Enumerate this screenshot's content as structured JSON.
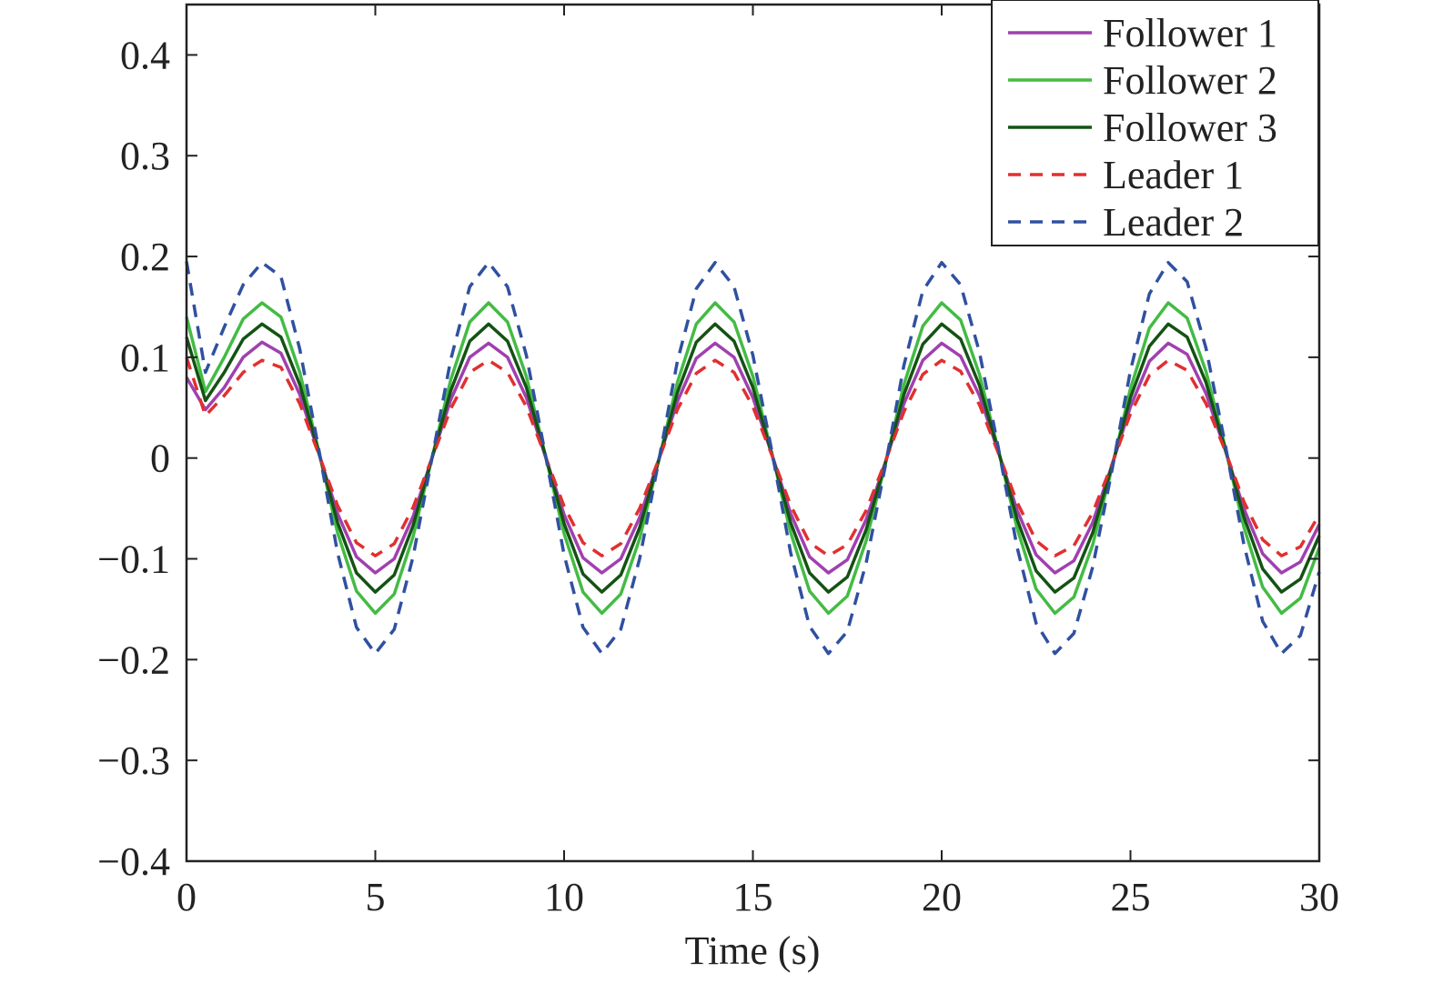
{
  "chart_data": {
    "type": "line",
    "xlabel": "Time (s)",
    "ylabel": "",
    "xlim": [
      0,
      30
    ],
    "ylim": [
      -0.4,
      0.45
    ],
    "xticks": [
      0,
      5,
      10,
      15,
      20,
      25,
      30
    ],
    "xtick_labels": [
      "0",
      "5",
      "10",
      "15",
      "20",
      "25",
      "30"
    ],
    "yticks": [
      -0.4,
      -0.3,
      -0.2,
      -0.1,
      0,
      0.1,
      0.2,
      0.3,
      0.4
    ],
    "ytick_labels": [
      "−0.4",
      "−0.3",
      "−0.2",
      "−0.1",
      "0",
      "0.1",
      "0.2",
      "0.3",
      "0.4"
    ],
    "grid": false,
    "legend_position": "top-right",
    "x": [
      0,
      0.5,
      1,
      1.5,
      2,
      2.5,
      3,
      3.5,
      4,
      4.5,
      5,
      5.5,
      6,
      6.5,
      7,
      7.5,
      8,
      8.5,
      9,
      9.5,
      10,
      10.5,
      11,
      11.5,
      12,
      12.5,
      13,
      13.5,
      14,
      14.5,
      15,
      15.5,
      16,
      16.5,
      17,
      17.5,
      18,
      18.5,
      19,
      19.5,
      20,
      20.5,
      21,
      21.5,
      22,
      22.5,
      23,
      23.5,
      24,
      24.5,
      25,
      25.5,
      26,
      26.5,
      27,
      27.5,
      28,
      28.5,
      29,
      29.5,
      30
    ],
    "series": [
      {
        "name": "Follower 1",
        "color": "#a040b0",
        "dash": "solid",
        "values": [
          0.08,
          0.048,
          0.07,
          0.1,
          0.115,
          0.104,
          0.063,
          0.005,
          -0.055,
          -0.098,
          -0.114,
          -0.1,
          -0.058,
          0.0,
          0.058,
          0.1,
          0.114,
          0.1,
          0.06,
          0.002,
          -0.056,
          -0.099,
          -0.114,
          -0.1,
          -0.059,
          -0.002,
          0.056,
          0.099,
          0.114,
          0.1,
          0.06,
          0.004,
          -0.055,
          -0.098,
          -0.114,
          -0.101,
          -0.061,
          -0.005,
          0.054,
          0.097,
          0.114,
          0.101,
          0.062,
          0.006,
          -0.052,
          -0.096,
          -0.114,
          -0.102,
          -0.064,
          -0.008,
          0.051,
          0.096,
          0.114,
          0.103,
          0.064,
          0.009,
          -0.05,
          -0.095,
          -0.114,
          -0.103,
          -0.066
        ]
      },
      {
        "name": "Follower 2",
        "color": "#44bb44",
        "dash": "solid",
        "values": [
          0.14,
          0.066,
          0.1,
          0.138,
          0.154,
          0.14,
          0.085,
          0.007,
          -0.074,
          -0.132,
          -0.154,
          -0.135,
          -0.078,
          0.0,
          0.078,
          0.135,
          0.154,
          0.135,
          0.081,
          0.003,
          -0.075,
          -0.133,
          -0.154,
          -0.135,
          -0.08,
          -0.003,
          0.075,
          0.133,
          0.154,
          0.135,
          0.081,
          0.005,
          -0.074,
          -0.132,
          -0.154,
          -0.137,
          -0.082,
          -0.007,
          0.073,
          0.131,
          0.154,
          0.137,
          0.083,
          0.008,
          -0.07,
          -0.13,
          -0.154,
          -0.138,
          -0.086,
          -0.011,
          0.069,
          0.129,
          0.154,
          0.139,
          0.086,
          0.012,
          -0.068,
          -0.128,
          -0.154,
          -0.139,
          -0.089
        ]
      },
      {
        "name": "Follower 3",
        "color": "#145214",
        "dash": "solid",
        "values": [
          0.12,
          0.057,
          0.085,
          0.118,
          0.133,
          0.12,
          0.073,
          0.006,
          -0.064,
          -0.114,
          -0.133,
          -0.116,
          -0.067,
          0.0,
          0.067,
          0.116,
          0.133,
          0.116,
          0.07,
          0.003,
          -0.065,
          -0.115,
          -0.133,
          -0.116,
          -0.069,
          -0.003,
          0.065,
          0.115,
          0.133,
          0.116,
          0.07,
          0.004,
          -0.064,
          -0.114,
          -0.133,
          -0.118,
          -0.071,
          -0.006,
          0.063,
          0.113,
          0.133,
          0.118,
          0.072,
          0.007,
          -0.061,
          -0.112,
          -0.133,
          -0.119,
          -0.074,
          -0.009,
          0.06,
          0.111,
          0.133,
          0.12,
          0.075,
          0.01,
          -0.058,
          -0.11,
          -0.133,
          -0.12,
          -0.077
        ]
      },
      {
        "name": "Leader 1",
        "color": "#e03030",
        "dash": "dashed",
        "values": [
          0.1,
          0.042,
          0.062,
          0.085,
          0.097,
          0.09,
          0.054,
          0.004,
          -0.047,
          -0.084,
          -0.097,
          -0.085,
          -0.049,
          0.0,
          0.049,
          0.085,
          0.097,
          0.085,
          0.051,
          0.002,
          -0.048,
          -0.084,
          -0.097,
          -0.085,
          -0.05,
          -0.002,
          0.048,
          0.084,
          0.097,
          0.085,
          0.051,
          0.003,
          -0.047,
          -0.084,
          -0.097,
          -0.086,
          -0.052,
          -0.004,
          0.046,
          0.083,
          0.097,
          0.086,
          0.053,
          0.005,
          -0.044,
          -0.082,
          -0.097,
          -0.087,
          -0.054,
          -0.007,
          0.044,
          0.082,
          0.097,
          0.087,
          0.054,
          0.008,
          -0.043,
          -0.081,
          -0.097,
          -0.088,
          -0.056
        ]
      },
      {
        "name": "Leader 2",
        "color": "#3050a0",
        "dash": "dashed",
        "values": [
          0.195,
          0.085,
          0.13,
          0.172,
          0.194,
          0.18,
          0.108,
          0.009,
          -0.094,
          -0.168,
          -0.194,
          -0.17,
          -0.098,
          0.0,
          0.098,
          0.17,
          0.194,
          0.17,
          0.102,
          0.004,
          -0.096,
          -0.168,
          -0.194,
          -0.17,
          -0.1,
          -0.004,
          0.096,
          0.168,
          0.194,
          0.17,
          0.102,
          0.007,
          -0.094,
          -0.167,
          -0.194,
          -0.172,
          -0.104,
          -0.009,
          0.092,
          0.166,
          0.194,
          0.172,
          0.105,
          0.01,
          -0.089,
          -0.164,
          -0.194,
          -0.174,
          -0.108,
          -0.014,
          0.087,
          0.163,
          0.194,
          0.175,
          0.109,
          0.015,
          -0.085,
          -0.162,
          -0.194,
          -0.176,
          -0.113
        ]
      }
    ]
  }
}
